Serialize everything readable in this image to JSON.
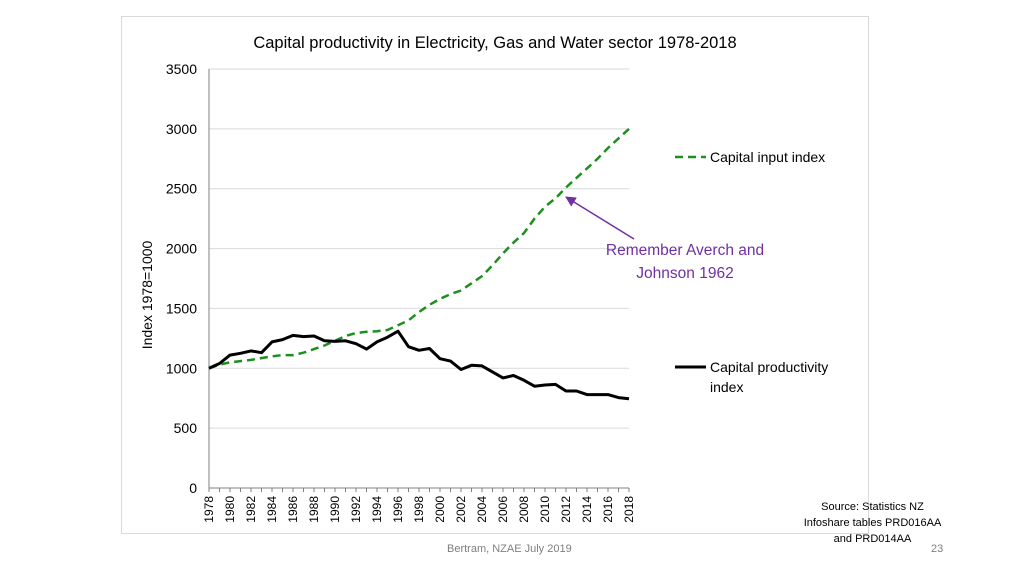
{
  "chart_data": {
    "type": "line",
    "title": "Capital productivity in Electricity, Gas and Water sector 1978-2018",
    "xlabel": "",
    "ylabel": "Index 1978=1000",
    "ylim": [
      0,
      3500
    ],
    "yticks": [
      0,
      500,
      1000,
      1500,
      2000,
      2500,
      3000,
      3500
    ],
    "grid": true,
    "legend_position": "right",
    "x": [
      1978,
      1979,
      1980,
      1981,
      1982,
      1983,
      1984,
      1985,
      1986,
      1987,
      1988,
      1989,
      1990,
      1991,
      1992,
      1993,
      1994,
      1995,
      1996,
      1997,
      1998,
      1999,
      2000,
      2001,
      2002,
      2003,
      2004,
      2005,
      2006,
      2007,
      2008,
      2009,
      2010,
      2011,
      2012,
      2013,
      2014,
      2015,
      2016,
      2017,
      2018
    ],
    "xtick_labels": [
      "1978",
      "1980",
      "1982",
      "1984",
      "1986",
      "1988",
      "1990",
      "1992",
      "1994",
      "1996",
      "1998",
      "2000",
      "2002",
      "2004",
      "2006",
      "2008",
      "2010",
      "2012",
      "2014",
      "2016",
      "2018"
    ],
    "series": [
      {
        "name": "Capital input index",
        "color": "#1e8f1e",
        "style": "dashed",
        "values": [
          1000,
          1030,
          1050,
          1060,
          1070,
          1085,
          1100,
          1110,
          1110,
          1130,
          1160,
          1190,
          1230,
          1270,
          1295,
          1305,
          1310,
          1320,
          1360,
          1400,
          1470,
          1530,
          1580,
          1620,
          1650,
          1710,
          1770,
          1860,
          1960,
          2050,
          2130,
          2250,
          2350,
          2420,
          2510,
          2590,
          2670,
          2750,
          2840,
          2920,
          3000
        ]
      },
      {
        "name": "Capital productivity index",
        "color": "#000000",
        "style": "solid",
        "values": [
          1000,
          1040,
          1110,
          1125,
          1145,
          1130,
          1220,
          1240,
          1275,
          1265,
          1270,
          1230,
          1225,
          1230,
          1205,
          1160,
          1220,
          1260,
          1310,
          1180,
          1150,
          1165,
          1080,
          1060,
          990,
          1025,
          1020,
          970,
          920,
          940,
          900,
          850,
          860,
          865,
          810,
          810,
          780,
          780,
          780,
          755,
          745
        ]
      }
    ],
    "legend_labels": {
      "capital_input": "Capital input index",
      "capital_productivity_line1": "Capital productivity",
      "capital_productivity_line2": "index"
    },
    "annotation": {
      "line1": "Remember Averch and",
      "line2": "Johnson 1962",
      "color": "#7030a0",
      "arrow_target": {
        "x": 2012,
        "y": 2430
      }
    }
  },
  "source_note": {
    "line1": "Source: Statistics NZ",
    "line2": "Infoshare tables PRD016AA",
    "line3": "and PRD014AA"
  },
  "footer": {
    "author": "Bertram, NZAE July 2019",
    "page_number": "23"
  }
}
